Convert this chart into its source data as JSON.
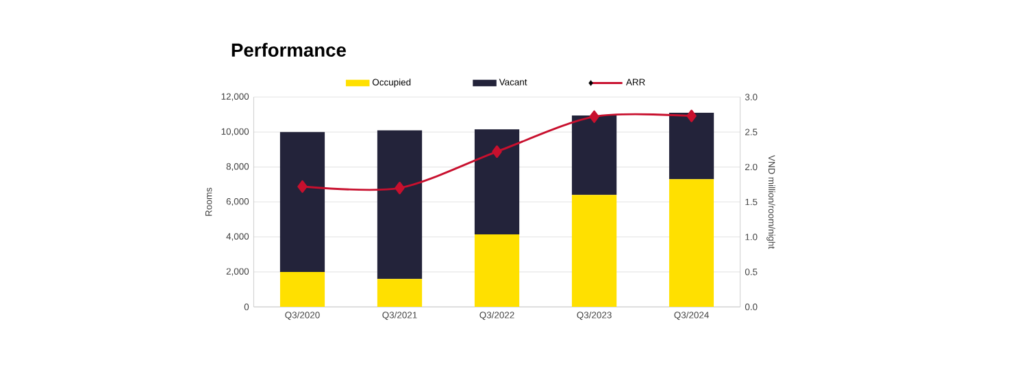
{
  "chart_data": {
    "type": "bar",
    "title": "Performance",
    "ylabel": "Rooms",
    "y2label": "VND million/room/night",
    "categories": [
      "Q3/2020",
      "Q3/2021",
      "Q3/2022",
      "Q3/2023",
      "Q3/2024"
    ],
    "stacked": true,
    "series": [
      {
        "name": "Occupied",
        "color": "#ffe000",
        "values": [
          2000,
          1600,
          4150,
          6400,
          7300
        ]
      },
      {
        "name": "Vacant",
        "color": "#23233a",
        "values": [
          8000,
          8500,
          6000,
          4550,
          3800
        ]
      },
      {
        "name": "ARR",
        "type": "line",
        "axis": "y2",
        "color": "#c8102e",
        "marker": "diamond",
        "values": [
          1.72,
          1.7,
          2.22,
          2.72,
          2.73
        ]
      }
    ],
    "ylim": [
      0,
      12000
    ],
    "yticks": [
      {
        "value": 0,
        "label": "0"
      },
      {
        "value": 2000,
        "label": "2,000"
      },
      {
        "value": 4000,
        "label": "4,000"
      },
      {
        "value": 6000,
        "label": "6,000"
      },
      {
        "value": 8000,
        "label": "8,000"
      },
      {
        "value": 10000,
        "label": "10,000"
      },
      {
        "value": 12000,
        "label": "12,000"
      }
    ],
    "y2lim": [
      0,
      3
    ],
    "y2ticks": [
      {
        "value": 0,
        "label": "0.0"
      },
      {
        "value": 0.5,
        "label": "0.5"
      },
      {
        "value": 1,
        "label": "1.0"
      },
      {
        "value": 1.5,
        "label": "1.5"
      },
      {
        "value": 2,
        "label": "2.0"
      },
      {
        "value": 2.5,
        "label": "2.5"
      },
      {
        "value": 3,
        "label": "3.0"
      }
    ],
    "grid": "y",
    "legend": "top"
  }
}
